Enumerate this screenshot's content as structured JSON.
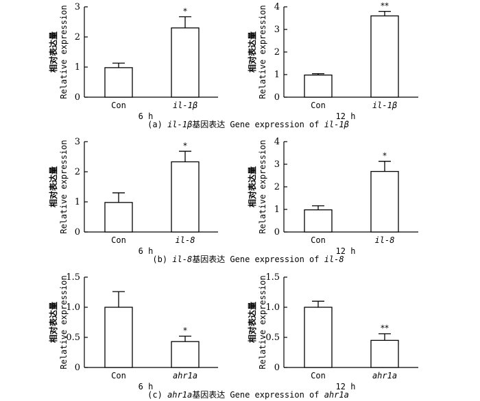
{
  "chart_data": [
    {
      "type": "bar",
      "id": "a-6h",
      "ylabel_cn": "相对表达量",
      "ylabel_en": "Relative expression",
      "categories": [
        "Con",
        "il-1β"
      ],
      "values": [
        0.98,
        2.3
      ],
      "errors": [
        0.15,
        0.37
      ],
      "significance": [
        "",
        "*"
      ],
      "ylim": [
        0,
        3
      ],
      "yticks": [
        0,
        1,
        2,
        3
      ],
      "ytick_labels": [
        "0",
        "1",
        "2",
        "3"
      ],
      "time_label": "6 h"
    },
    {
      "type": "bar",
      "id": "a-12h",
      "ylabel_cn": "相对表达量",
      "ylabel_en": "Relative expression",
      "categories": [
        "Con",
        "il-1β"
      ],
      "values": [
        0.98,
        3.6
      ],
      "errors": [
        0.06,
        0.2
      ],
      "significance": [
        "",
        "**"
      ],
      "ylim": [
        0,
        4
      ],
      "yticks": [
        0,
        1,
        2,
        3,
        4
      ],
      "ytick_labels": [
        "0",
        "1",
        "2",
        "3",
        "4"
      ],
      "time_label": "12 h"
    },
    {
      "type": "bar",
      "id": "b-6h",
      "ylabel_cn": "相对表达量",
      "ylabel_en": "Relative expression",
      "categories": [
        "Con",
        "il-8"
      ],
      "values": [
        0.98,
        2.33
      ],
      "errors": [
        0.32,
        0.35
      ],
      "significance": [
        "",
        "*"
      ],
      "ylim": [
        0,
        3
      ],
      "yticks": [
        0,
        1,
        2,
        3
      ],
      "ytick_labels": [
        "0",
        "1",
        "2",
        "3"
      ],
      "time_label": "6 h"
    },
    {
      "type": "bar",
      "id": "b-12h",
      "ylabel_cn": "相对表达量",
      "ylabel_en": "Relative expression",
      "categories": [
        "Con",
        "il-8"
      ],
      "values": [
        0.98,
        2.68
      ],
      "errors": [
        0.18,
        0.45
      ],
      "significance": [
        "",
        "*"
      ],
      "ylim": [
        0,
        4
      ],
      "yticks": [
        0,
        1,
        2,
        3,
        4
      ],
      "ytick_labels": [
        "0",
        "1",
        "2",
        "3",
        "4"
      ],
      "time_label": "12 h"
    },
    {
      "type": "bar",
      "id": "c-6h",
      "ylabel_cn": "相对表达量",
      "ylabel_en": "Relative expression",
      "categories": [
        "Con",
        "ahr1a"
      ],
      "values": [
        1.0,
        0.43
      ],
      "errors": [
        0.26,
        0.09
      ],
      "significance": [
        "",
        "*"
      ],
      "ylim": [
        0,
        1.5
      ],
      "yticks": [
        0,
        0.5,
        1.0,
        1.5
      ],
      "ytick_labels": [
        "0",
        "0.5",
        "1.0",
        "1.5"
      ],
      "time_label": "6 h"
    },
    {
      "type": "bar",
      "id": "c-12h",
      "ylabel_cn": "相对表达量",
      "ylabel_en": "Relative expression",
      "categories": [
        "Con",
        "ahr1a"
      ],
      "values": [
        1.0,
        0.45
      ],
      "errors": [
        0.1,
        0.11
      ],
      "significance": [
        "",
        "**"
      ],
      "ylim": [
        0,
        1.5
      ],
      "yticks": [
        0,
        0.5,
        1.0,
        1.5
      ],
      "ytick_labels": [
        "0",
        "0.5",
        "1.0",
        "1.5"
      ],
      "time_label": "12 h"
    }
  ],
  "captions": [
    {
      "prefix": "(a) ",
      "gene": "il-1β",
      "middle": "基因表达 Gene expression of ",
      "gene2": "il-1β"
    },
    {
      "prefix": "(b) ",
      "gene": "il-8",
      "middle": "基因表达 Gene expression of ",
      "gene2": "il-8"
    },
    {
      "prefix": "(c) ",
      "gene": "ahr1a",
      "middle": "基因表达 Gene expression of ",
      "gene2": "ahr1a"
    }
  ]
}
